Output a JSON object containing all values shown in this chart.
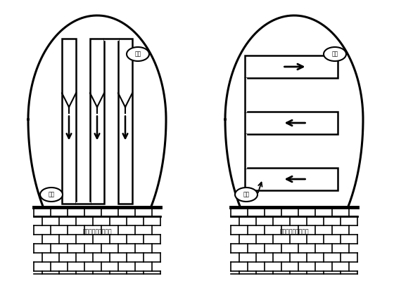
{
  "bg_color": "#ffffff",
  "outline_color": "#000000",
  "label_qidian": "起点",
  "label_zhongdian": "终点",
  "label_bottom": "下台阶控制爆破开挖",
  "fig_width": 5.6,
  "fig_height": 4.2,
  "dpi": 100
}
